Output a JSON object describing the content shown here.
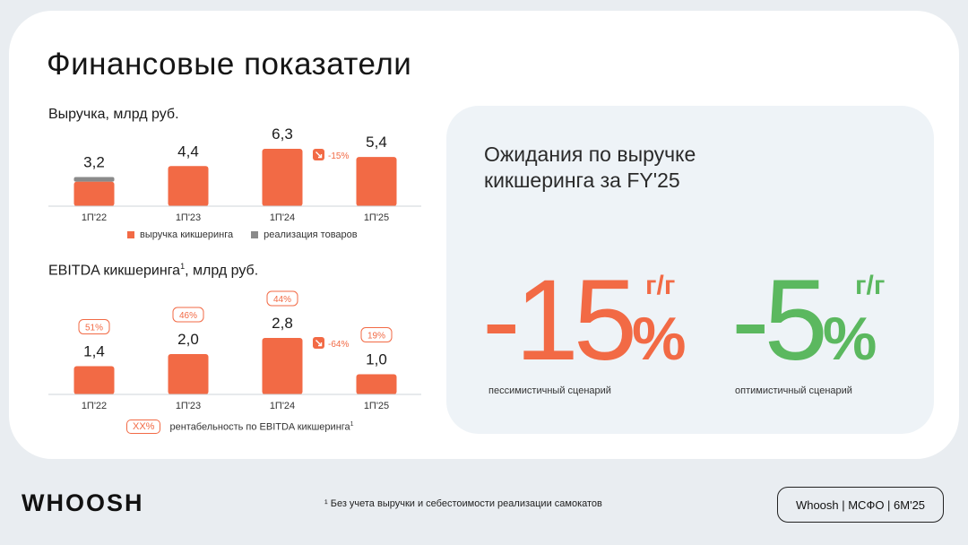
{
  "page": {
    "title": "Финансовые показатели"
  },
  "colors": {
    "accent": "#f26a45",
    "gray": "#8a8a8a",
    "green": "#5bb85f",
    "panel": "#eef3f7"
  },
  "revenue": {
    "title": "Выручка, млрд руб.",
    "legend": [
      "выручка кикшеринга",
      "реализация товаров"
    ],
    "change_label": "-15%"
  },
  "ebitda": {
    "title": "EBITDA кикшеринга",
    "title_sup": "1",
    "title_suffix": ", млрд руб.",
    "legend_box": "XX%",
    "legend_text": "рентабельность по EBITDA кикшеринга",
    "legend_sup": "1",
    "change_label": "-64%"
  },
  "chart_data": [
    {
      "type": "bar",
      "title": "Выручка, млрд руб.",
      "categories": [
        "1П'22",
        "1П'23",
        "1П'24",
        "1П'25"
      ],
      "series": [
        {
          "name": "выручка кикшеринга",
          "values": [
            2.7,
            4.4,
            6.3,
            5.4
          ]
        },
        {
          "name": "реализация товаров",
          "values": [
            0.5,
            0,
            0,
            0
          ]
        }
      ],
      "totals": [
        "3,2",
        "4,4",
        "6,3",
        "5,4"
      ],
      "ylim": [
        0,
        6.3
      ],
      "annotations": [
        {
          "between": [
            "1П'24",
            "1П'25"
          ],
          "text": "-15%"
        }
      ]
    },
    {
      "type": "bar",
      "title": "EBITDA кикшеринга, млрд руб.",
      "categories": [
        "1П'22",
        "1П'23",
        "1П'24",
        "1П'25"
      ],
      "values": [
        1.4,
        2.0,
        2.8,
        1.0
      ],
      "value_labels": [
        "1,4",
        "2,0",
        "2,8",
        "1,0"
      ],
      "margins": [
        "51%",
        "46%",
        "44%",
        "19%"
      ],
      "ylim": [
        0,
        2.8
      ],
      "annotations": [
        {
          "between": [
            "1П'24",
            "1П'25"
          ],
          "text": "-64%"
        }
      ]
    }
  ],
  "forecast": {
    "title_line1": "Ожидания по выручке",
    "title_line2": "кикшеринга за FY'25",
    "pessimistic": {
      "value": "-15",
      "unit": "%",
      "yoy": "г/г",
      "label": "пессимистичный сценарий"
    },
    "optimistic": {
      "value": "-5",
      "unit": "%",
      "yoy": "г/г",
      "label": "оптимистичный сценарий"
    }
  },
  "footer": {
    "logo": "WHOOSH",
    "footnote": "¹ Без учета выручки и себестоимости реализации самокатов",
    "badge": "Whoosh | МСФО | 6М'25"
  }
}
